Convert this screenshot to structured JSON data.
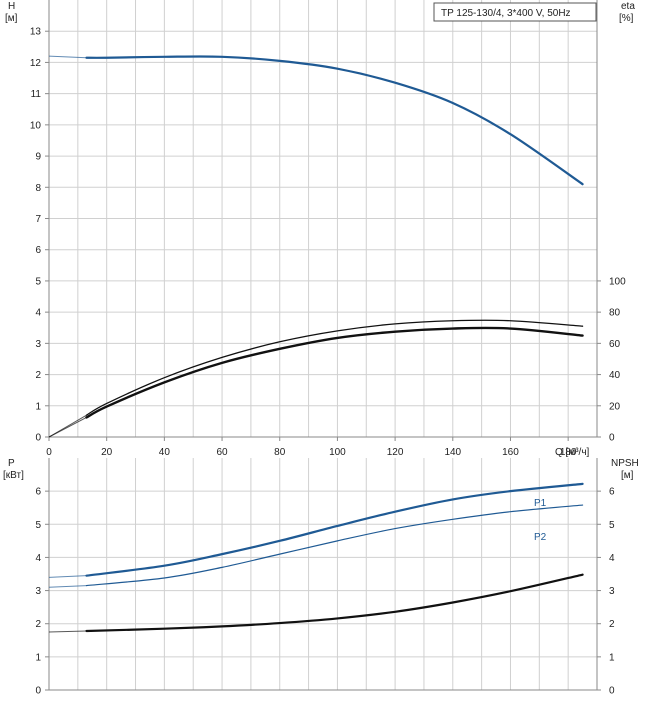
{
  "colors": {
    "blue": "#1f5a94",
    "black": "#111111",
    "grid": "#d0d0d0",
    "axis": "#8a8a8a"
  },
  "chart_data": [
    {
      "type": "line",
      "title": "TP 125-130/4, 3*400 V, 50Hz",
      "xlabel": "Q [м³/ч]",
      "xlim": [
        0,
        190
      ],
      "xticks": [
        0,
        20,
        40,
        60,
        80,
        100,
        120,
        140,
        160,
        180
      ],
      "ylabel_left": {
        "name": "H",
        "unit": "[м]"
      },
      "ylim_left": [
        0,
        14
      ],
      "yticks_left": [
        0,
        1,
        2,
        3,
        4,
        5,
        6,
        7,
        8,
        9,
        10,
        11,
        12,
        13
      ],
      "ylabel_right": {
        "name": "eta",
        "unit": "[%]"
      },
      "ylim_right": [
        0,
        280
      ],
      "yticks_right": [
        0,
        20,
        40,
        60,
        80,
        100
      ],
      "grid": true,
      "series": [
        {
          "axis": "left",
          "color": "#1f5a94",
          "width": 2.2,
          "x": [
            0,
            13,
            20,
            40,
            60,
            80,
            100,
            120,
            140,
            160,
            185
          ],
          "y": [
            12.2,
            12.15,
            12.15,
            12.18,
            12.18,
            12.05,
            11.8,
            11.35,
            10.7,
            9.7,
            8.1
          ]
        },
        {
          "axis": "right",
          "color": "#111111",
          "width": 1.3,
          "x": [
            0,
            13,
            20,
            40,
            60,
            80,
            100,
            120,
            140,
            160,
            185
          ],
          "y": [
            0,
            14,
            21.5,
            38,
            51,
            61,
            68,
            72.5,
            74.5,
            74.5,
            71
          ]
        },
        {
          "axis": "right",
          "color": "#111111",
          "width": 2.4,
          "x": [
            0,
            13,
            20,
            40,
            60,
            80,
            100,
            120,
            140,
            160,
            185
          ],
          "y": [
            0,
            12.5,
            19.5,
            35,
            47.5,
            56.5,
            63.5,
            67.5,
            69.5,
            69.5,
            65
          ]
        }
      ]
    },
    {
      "type": "line",
      "xlim": [
        0,
        190
      ],
      "ylabel_left": {
        "name": "P",
        "unit": "[кВт]"
      },
      "ylim_left": [
        0,
        7
      ],
      "yticks_left": [
        0,
        1,
        2,
        3,
        4,
        5,
        6
      ],
      "ylabel_right": {
        "name": "NPSH",
        "unit": "[м]"
      },
      "ylim_right": [
        0,
        7
      ],
      "yticks_right": [
        0,
        1,
        2,
        3,
        4,
        5,
        6
      ],
      "grid": true,
      "series": [
        {
          "name": "P1",
          "axis": "left",
          "color": "#1f5a94",
          "width": 2.2,
          "x": [
            0,
            13,
            40,
            60,
            80,
            100,
            120,
            140,
            160,
            185
          ],
          "y": [
            3.4,
            3.45,
            3.75,
            4.1,
            4.5,
            4.95,
            5.38,
            5.75,
            6.0,
            6.22
          ]
        },
        {
          "name": "P2",
          "axis": "left",
          "color": "#1f5a94",
          "width": 1.2,
          "x": [
            0,
            13,
            40,
            60,
            80,
            100,
            120,
            140,
            160,
            185
          ],
          "y": [
            3.1,
            3.15,
            3.38,
            3.7,
            4.1,
            4.5,
            4.87,
            5.15,
            5.38,
            5.58
          ]
        },
        {
          "axis": "right",
          "color": "#111111",
          "width": 2.2,
          "x": [
            0,
            13,
            40,
            60,
            80,
            100,
            120,
            140,
            160,
            185
          ],
          "y": [
            1.75,
            1.78,
            1.85,
            1.92,
            2.02,
            2.16,
            2.36,
            2.64,
            2.98,
            3.48
          ]
        }
      ]
    }
  ]
}
